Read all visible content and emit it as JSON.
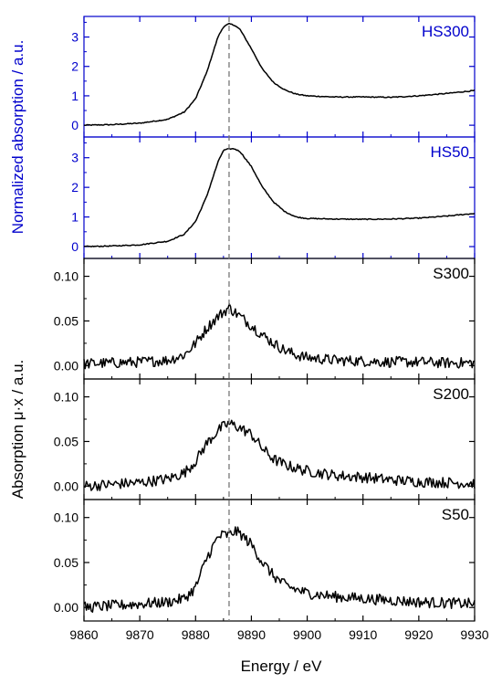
{
  "figure": {
    "xlabel": "Energy / eV",
    "ylabel_top": "Normalized absorption / a.u.",
    "ylabel_bottom": "Absorption μ·x / a.u.",
    "top_axis_color": "#0000cc",
    "bottom_axis_color": "#000000",
    "trace_color": "#000000",
    "reference_line_color": "#777777",
    "reference_line_style": "dashed"
  },
  "chart_data": [
    {
      "type": "line",
      "title": "HS300",
      "xlim": [
        9860,
        9930
      ],
      "ylim": [
        -0.4,
        3.7
      ],
      "yticks": [
        0,
        1,
        2,
        3
      ],
      "ytick_labels": [
        "0",
        "1",
        "2",
        "3"
      ],
      "reference_x": 9886,
      "x": [
        9860,
        9865,
        9870,
        9875,
        9878,
        9880,
        9882,
        9884,
        9885,
        9886,
        9887,
        9888,
        9890,
        9892,
        9894,
        9896,
        9898,
        9900,
        9905,
        9910,
        9915,
        9920,
        9925,
        9930
      ],
      "series": [
        {
          "values": [
            0.0,
            0.02,
            0.07,
            0.2,
            0.45,
            0.9,
            1.8,
            3.0,
            3.35,
            3.45,
            3.4,
            3.25,
            2.6,
            1.9,
            1.45,
            1.2,
            1.06,
            1.0,
            0.96,
            0.96,
            0.95,
            1.0,
            1.08,
            1.18
          ]
        }
      ]
    },
    {
      "type": "line",
      "title": "HS50",
      "xlim": [
        9860,
        9930
      ],
      "ylim": [
        -0.4,
        3.7
      ],
      "yticks": [
        0,
        1,
        2,
        3
      ],
      "ytick_labels": [
        "0",
        "1",
        "2",
        "3"
      ],
      "reference_x": 9886,
      "x": [
        9860,
        9865,
        9870,
        9875,
        9878,
        9880,
        9882,
        9884,
        9885,
        9886,
        9887,
        9888,
        9890,
        9892,
        9894,
        9896,
        9898,
        9900,
        9905,
        9910,
        9915,
        9920,
        9925,
        9930
      ],
      "series": [
        {
          "values": [
            0.0,
            0.02,
            0.06,
            0.18,
            0.42,
            0.85,
            1.7,
            2.85,
            3.25,
            3.3,
            3.3,
            3.2,
            2.7,
            2.0,
            1.5,
            1.18,
            1.0,
            0.95,
            0.93,
            0.92,
            0.93,
            0.96,
            1.03,
            1.12
          ]
        }
      ]
    },
    {
      "type": "line",
      "title": "S300",
      "xlim": [
        9860,
        9930
      ],
      "ylim": [
        -0.015,
        0.12
      ],
      "yticks": [
        0.0,
        0.05,
        0.1
      ],
      "ytick_labels": [
        "0.00",
        "0.05",
        "0.10"
      ],
      "reference_x": 9886,
      "x": [
        9860,
        9865,
        9870,
        9875,
        9878,
        9880,
        9882,
        9884,
        9885,
        9886,
        9887,
        9888,
        9890,
        9892,
        9894,
        9896,
        9898,
        9900,
        9905,
        9910,
        9915,
        9920,
        9925,
        9930
      ],
      "series": [
        {
          "values": [
            0.002,
            0.003,
            0.004,
            0.006,
            0.012,
            0.025,
            0.042,
            0.055,
            0.06,
            0.065,
            0.06,
            0.055,
            0.045,
            0.034,
            0.025,
            0.017,
            0.012,
            0.009,
            0.006,
            0.005,
            0.004,
            0.004,
            0.003,
            0.003
          ]
        }
      ]
    },
    {
      "type": "line",
      "title": "S200",
      "xlim": [
        9860,
        9930
      ],
      "ylim": [
        -0.015,
        0.12
      ],
      "yticks": [
        0.0,
        0.05,
        0.1
      ],
      "ytick_labels": [
        "0.00",
        "0.05",
        "0.10"
      ],
      "reference_x": 9886,
      "x": [
        9860,
        9865,
        9870,
        9875,
        9878,
        9880,
        9882,
        9884,
        9885,
        9886,
        9887,
        9888,
        9890,
        9892,
        9894,
        9896,
        9898,
        9900,
        9905,
        9910,
        9915,
        9920,
        9925,
        9930
      ],
      "series": [
        {
          "values": [
            0.0,
            0.002,
            0.004,
            0.008,
            0.015,
            0.028,
            0.048,
            0.062,
            0.067,
            0.07,
            0.068,
            0.065,
            0.058,
            0.042,
            0.03,
            0.024,
            0.02,
            0.017,
            0.012,
            0.01,
            0.007,
            0.005,
            0.004,
            0.003
          ]
        }
      ]
    },
    {
      "type": "line",
      "title": "S50",
      "xlim": [
        9860,
        9930
      ],
      "ylim": [
        -0.015,
        0.12
      ],
      "yticks": [
        0.0,
        0.05,
        0.1
      ],
      "ytick_labels": [
        "0.00",
        "0.05",
        "0.10"
      ],
      "reference_x": 9886,
      "x": [
        9860,
        9865,
        9870,
        9875,
        9878,
        9880,
        9882,
        9884,
        9885,
        9886,
        9887,
        9888,
        9890,
        9892,
        9894,
        9896,
        9898,
        9900,
        9905,
        9910,
        9915,
        9920,
        9925,
        9930
      ],
      "series": [
        {
          "values": [
            0.0,
            0.002,
            0.004,
            0.006,
            0.01,
            0.022,
            0.055,
            0.078,
            0.081,
            0.08,
            0.085,
            0.082,
            0.07,
            0.05,
            0.035,
            0.025,
            0.02,
            0.016,
            0.012,
            0.01,
            0.008,
            0.006,
            0.005,
            0.004
          ]
        }
      ]
    }
  ],
  "x_axis": {
    "ticks": [
      9860,
      9870,
      9880,
      9890,
      9900,
      9910,
      9920,
      9930
    ],
    "tick_labels": [
      "9860",
      "9870",
      "9880",
      "9890",
      "9900",
      "9910",
      "9920",
      "9930"
    ]
  }
}
